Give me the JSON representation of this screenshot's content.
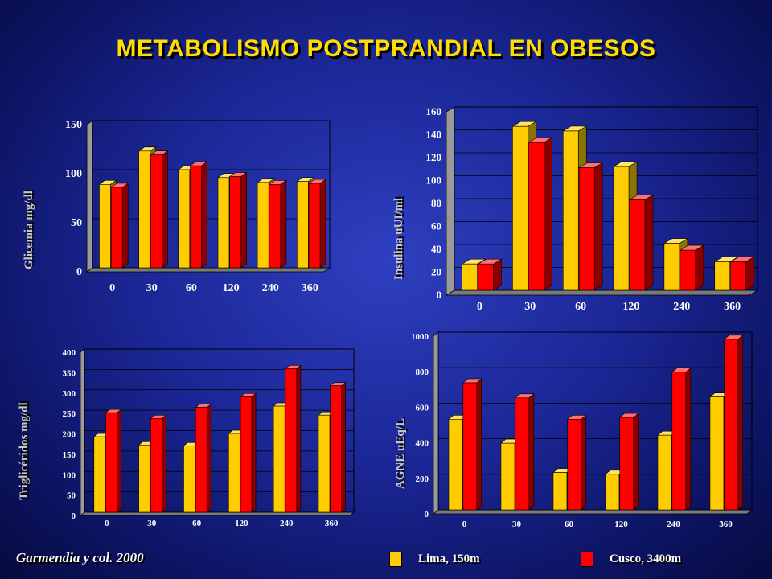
{
  "title": "METABOLISMO POSTPRANDIAL EN OBESOS",
  "citation": "Garmendia y col. 2000",
  "legend": {
    "lima": "Lima, 150m",
    "cusco": "Cusco, 3400m"
  },
  "colors": {
    "lima": "#ffcc00",
    "cusco": "#ff0000",
    "title": "#ffdd00"
  },
  "chart_data": [
    {
      "type": "bar",
      "ylabel": "Glicemia mg/dl",
      "categories": [
        "0",
        "30",
        "60",
        "120",
        "240",
        "360"
      ],
      "ylim": [
        0,
        150
      ],
      "yticks": [
        0,
        50,
        100,
        150
      ],
      "series": [
        {
          "name": "Lima, 150m",
          "values": [
            85,
            119,
            100,
            92,
            87,
            88
          ]
        },
        {
          "name": "Cusco, 3400m",
          "values": [
            82,
            115,
            104,
            93,
            85,
            86
          ]
        }
      ]
    },
    {
      "type": "bar",
      "ylabel": "Insulina uUI/ml",
      "categories": [
        "0",
        "30",
        "60",
        "120",
        "240",
        "360"
      ],
      "ylim": [
        0,
        160
      ],
      "yticks": [
        0,
        20,
        40,
        60,
        80,
        100,
        120,
        140,
        160
      ],
      "series": [
        {
          "name": "Lima, 150m",
          "values": [
            23,
            143,
            139,
            108,
            41,
            25
          ]
        },
        {
          "name": "Cusco, 3400m",
          "values": [
            23,
            129,
            107,
            79,
            35,
            25
          ]
        }
      ]
    },
    {
      "type": "bar",
      "ylabel": "Triglicéridos mg/dl",
      "categories": [
        "0",
        "30",
        "60",
        "120",
        "240",
        "360"
      ],
      "ylim": [
        0,
        400
      ],
      "yticks": [
        0,
        50,
        100,
        150,
        200,
        250,
        300,
        350,
        400
      ],
      "series": [
        {
          "name": "Lima, 150m",
          "values": [
            185,
            165,
            163,
            193,
            260,
            238
          ]
        },
        {
          "name": "Cusco, 3400m",
          "values": [
            244,
            230,
            257,
            283,
            352,
            310
          ]
        }
      ]
    },
    {
      "type": "bar",
      "ylabel": "AGNE uEq/L",
      "categories": [
        "0",
        "30",
        "60",
        "120",
        "240",
        "360"
      ],
      "ylim": [
        0,
        1000
      ],
      "yticks": [
        0,
        200,
        400,
        600,
        800,
        1000
      ],
      "series": [
        {
          "name": "Lima, 150m",
          "values": [
            510,
            375,
            210,
            200,
            420,
            635
          ]
        },
        {
          "name": "Cusco, 3400m",
          "values": [
            715,
            630,
            510,
            520,
            775,
            960
          ]
        }
      ]
    }
  ]
}
